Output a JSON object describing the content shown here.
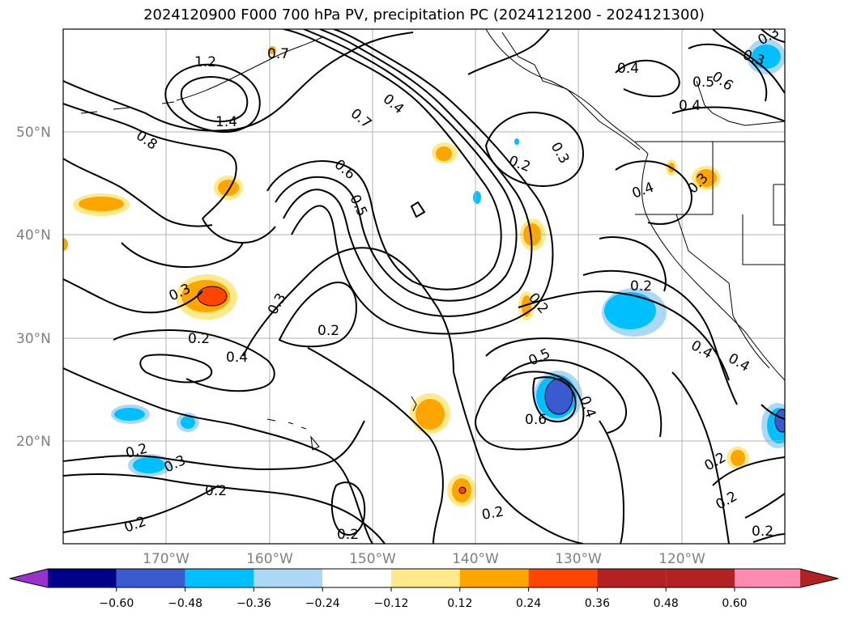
{
  "title": "2024120900 F000 700 hPa PV, precipitation PC (2024121200 - 2024121300)",
  "map": {
    "lat_labels": [
      "50°N",
      "40°N",
      "30°N",
      "20°N"
    ],
    "lon_labels": [
      "170°W",
      "160°W",
      "150°W",
      "140°W",
      "130°W",
      "120°W"
    ],
    "gridlines": true,
    "contour_labels": [
      "1.2",
      "1.4",
      "0.8",
      "0.7",
      "0.4",
      "0.7",
      "0.6",
      "0.5",
      "0.3",
      "0.2",
      "0.3",
      "0.2",
      "0.4",
      "0.4",
      "0.5",
      "0.6",
      "0.4",
      "0.3",
      "0.4",
      "0.2",
      "0.2",
      "0.3",
      "0.2",
      "0.2",
      "0.4",
      "0.3",
      "0.2",
      "0.2",
      "0.5",
      "0.6",
      "0.4",
      "0.2",
      "0.2",
      "0.4",
      "0.2",
      "0.3",
      "0.2",
      "0.2",
      "0.3"
    ]
  },
  "colorbar": {
    "ticks": [
      "−0.60",
      "−0.48",
      "−0.36",
      "−0.24",
      "−0.12",
      "0.12",
      "0.24",
      "0.36",
      "0.48",
      "0.60"
    ],
    "colors": [
      "#9932cc",
      "#00008b",
      "#3a5bd0",
      "#00bfff",
      "#add8f5",
      "#ffffff",
      "#ffe98a",
      "#ffa500",
      "#ff4500",
      "#b22222",
      "#ff8cb0"
    ]
  }
}
